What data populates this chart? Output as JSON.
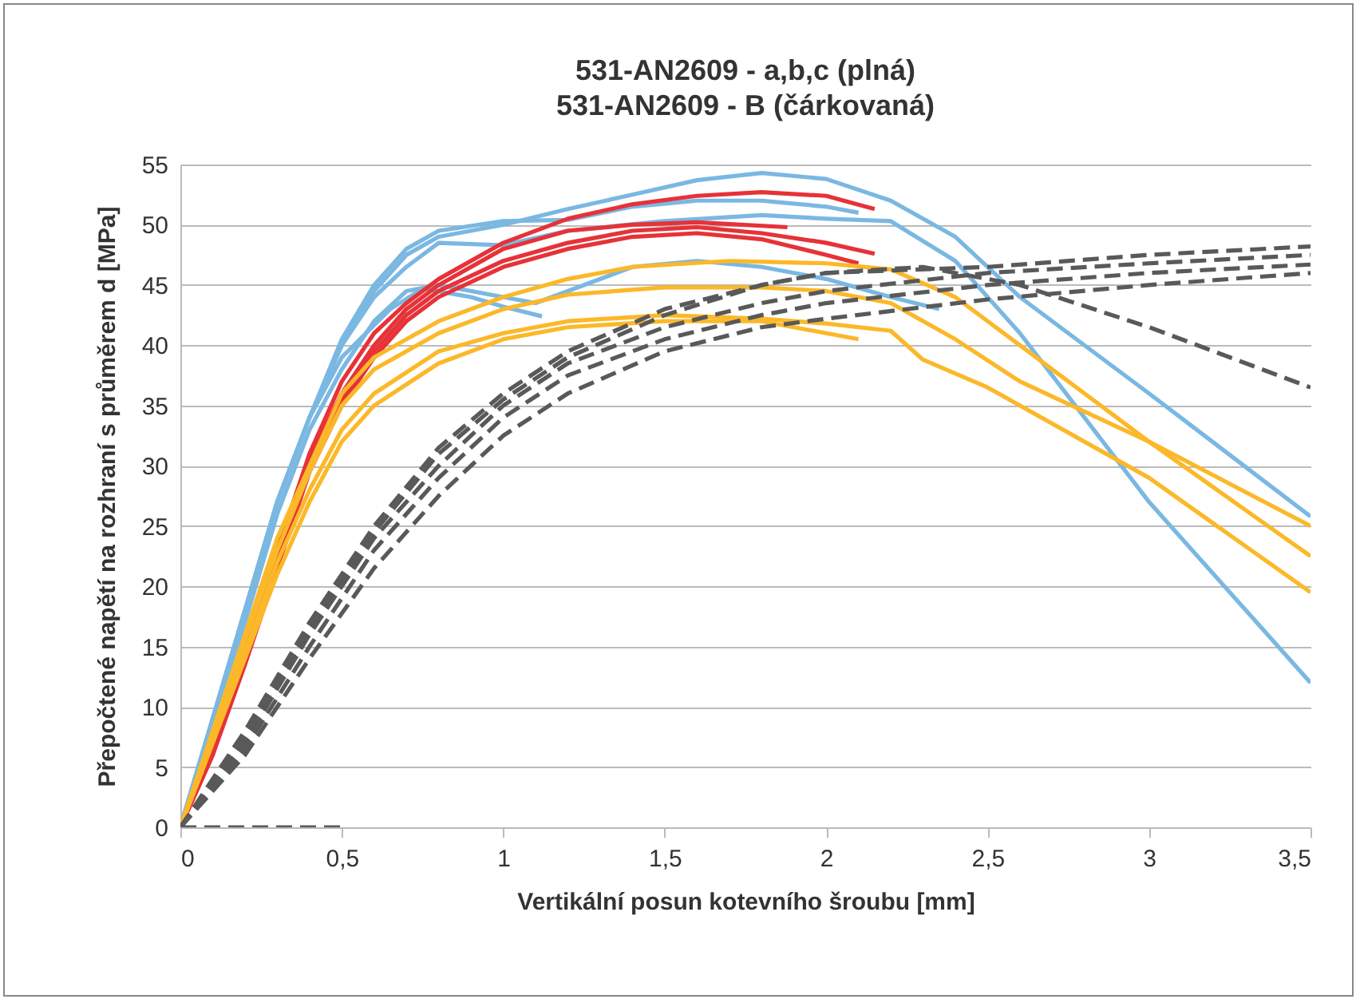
{
  "chart_data": {
    "type": "line",
    "title": "531-AN2609 - a,b,c (plná)",
    "subtitle": "531-AN2609 - B (čárkovaná)",
    "xlabel": "Vertikální posun kotevního šroubu [mm]",
    "ylabel": "Přepočtené napětí na rozhraní s průměrem d [MPa]",
    "xlim": [
      0,
      3.5
    ],
    "xticks": [
      0,
      {
        "value": 0.5,
        "label": "0,5"
      },
      1,
      {
        "value": 1.5,
        "label": "1,5"
      },
      2,
      {
        "value": 2.5,
        "label": "2,5"
      },
      3,
      {
        "value": 3.5,
        "label": "3,5"
      }
    ],
    "ylim": [
      0,
      55
    ],
    "yticks": [
      0,
      5,
      10,
      15,
      20,
      25,
      30,
      35,
      40,
      45,
      50,
      55
    ],
    "grid": "y",
    "legend": false,
    "marker": "none",
    "series": [
      {
        "color": "#7ab8e2",
        "line_style": "solid",
        "x": [
          0,
          0.1,
          0.2,
          0.3,
          0.4,
          0.5,
          0.6,
          0.7,
          0.8,
          1,
          1.2,
          1.4,
          1.6,
          1.8,
          2,
          2.2,
          2.4,
          2.6,
          3,
          3.5
        ],
        "values": [
          0,
          9,
          18,
          27,
          34,
          40,
          44.5,
          47.5,
          49,
          50,
          51.3,
          52.5,
          53.7,
          54.3,
          53.8,
          52,
          49,
          44,
          36,
          25.8
        ]
      },
      {
        "color": "#7ab8e2",
        "line_style": "solid",
        "x": [
          0,
          0.1,
          0.2,
          0.3,
          0.4,
          0.5,
          0.6,
          0.7,
          0.8,
          1,
          1.2,
          1.5,
          1.8,
          2,
          2.2,
          2.4,
          2.6,
          3,
          3.5
        ],
        "values": [
          0,
          9,
          18,
          27,
          34,
          40,
          44,
          46.5,
          48.5,
          48.3,
          49.5,
          50.3,
          50.8,
          50.5,
          50.3,
          47,
          41,
          27,
          12
        ]
      },
      {
        "color": "#7ab8e2",
        "line_style": "solid",
        "x": [
          0,
          0.1,
          0.2,
          0.3,
          0.4,
          0.5,
          0.6,
          0.7,
          0.8,
          1,
          1.2,
          1.4,
          1.6,
          1.8,
          2,
          2.1
        ],
        "values": [
          0,
          9,
          18,
          27,
          34,
          40.5,
          45,
          48,
          49.5,
          50.3,
          50.4,
          51.5,
          52,
          52,
          51.5,
          51
        ]
      },
      {
        "color": "#7ab8e2",
        "line_style": "solid",
        "x": [
          0,
          0.1,
          0.2,
          0.3,
          0.4,
          0.5,
          0.6,
          0.7,
          0.8,
          1,
          1.1,
          1.2,
          1.4,
          1.6,
          1.8,
          2,
          2.2,
          2.35
        ],
        "values": [
          0,
          8.5,
          17,
          26,
          33,
          38,
          42,
          44.5,
          45,
          44,
          43.5,
          44.5,
          46.5,
          47,
          46.5,
          45.5,
          44,
          43
        ]
      },
      {
        "color": "#7ab8e2",
        "line_style": "solid",
        "x": [
          0,
          0.1,
          0.2,
          0.3,
          0.4,
          0.5,
          0.65,
          0.75,
          0.9,
          1,
          1.12
        ],
        "values": [
          0,
          9,
          18,
          27,
          34,
          39,
          43,
          44.7,
          44,
          43.2,
          42.4
        ]
      },
      {
        "color": "#e63238",
        "line_style": "solid",
        "x": [
          0,
          0.1,
          0.2,
          0.3,
          0.4,
          0.5,
          0.6,
          0.7,
          0.8,
          1,
          1.2,
          1.4,
          1.6,
          1.8,
          2,
          2.15
        ],
        "values": [
          0,
          7,
          15,
          23,
          31,
          37,
          41,
          43.5,
          45.5,
          48.5,
          50.5,
          51.7,
          52.4,
          52.7,
          52.4,
          51.3
        ]
      },
      {
        "color": "#e63238",
        "line_style": "solid",
        "x": [
          0,
          0.1,
          0.2,
          0.3,
          0.4,
          0.5,
          0.6,
          0.7,
          0.8,
          1,
          1.2,
          1.4,
          1.6,
          1.8,
          2,
          2.15
        ],
        "values": [
          0,
          6,
          14,
          22,
          30,
          35.5,
          39.5,
          42.5,
          44.5,
          47,
          48.5,
          49.5,
          49.8,
          49.3,
          48.5,
          47.6
        ]
      },
      {
        "color": "#e63238",
        "line_style": "solid",
        "x": [
          0,
          0.1,
          0.2,
          0.3,
          0.4,
          0.5,
          0.6,
          0.7,
          0.8,
          1,
          1.2,
          1.4,
          1.6,
          1.88
        ],
        "values": [
          0,
          6.5,
          14.5,
          22.5,
          30.5,
          36,
          40,
          43,
          45,
          48,
          49.5,
          50,
          50.2,
          49.8
        ]
      },
      {
        "color": "#e63238",
        "line_style": "solid",
        "x": [
          0,
          0.1,
          0.2,
          0.3,
          0.4,
          0.5,
          0.6,
          0.7,
          0.8,
          1,
          1.2,
          1.4,
          1.6,
          1.8,
          2,
          2.1
        ],
        "values": [
          0,
          6,
          13.5,
          21.5,
          29.5,
          35,
          39,
          42,
          44,
          46.5,
          48,
          49,
          49.3,
          48.8,
          47.5,
          46.8
        ]
      },
      {
        "color": "#fbb829",
        "line_style": "solid",
        "x": [
          0,
          0.1,
          0.2,
          0.3,
          0.4,
          0.5,
          0.6,
          0.8,
          1,
          1.2,
          1.4,
          1.7,
          2,
          2.2,
          2.4,
          2.6,
          3,
          3.5
        ],
        "values": [
          0,
          8,
          16,
          24,
          30,
          36,
          39,
          42,
          44,
          45.5,
          46.5,
          47,
          46.8,
          46.3,
          44,
          40,
          32,
          22.5
        ]
      },
      {
        "color": "#fbb829",
        "line_style": "solid",
        "x": [
          0,
          0.1,
          0.2,
          0.3,
          0.4,
          0.5,
          0.6,
          0.8,
          1,
          1.2,
          1.5,
          1.8,
          2,
          2.2,
          2.4,
          2.6,
          3,
          3.5
        ],
        "values": [
          0,
          7.5,
          15.5,
          23,
          29.5,
          35,
          38,
          41,
          43,
          44.2,
          44.8,
          44.8,
          44.5,
          43.5,
          40.5,
          37,
          32,
          25
        ]
      },
      {
        "color": "#fbb829",
        "line_style": "solid",
        "x": [
          0,
          0.1,
          0.2,
          0.3,
          0.4,
          0.5,
          0.6,
          0.8,
          1,
          1.2,
          1.5,
          1.8,
          2,
          2.2,
          2.3,
          2.5,
          3,
          3.5
        ],
        "values": [
          0,
          7,
          14.5,
          22,
          28,
          33,
          36,
          39.5,
          41,
          42,
          42.5,
          42.2,
          41.8,
          41.2,
          38.8,
          36.5,
          29,
          19.5
        ]
      },
      {
        "color": "#fbb829",
        "line_style": "solid",
        "x": [
          0,
          0.1,
          0.2,
          0.3,
          0.4,
          0.5,
          0.6,
          0.8,
          1,
          1.2,
          1.5,
          1.8,
          2,
          2.1
        ],
        "values": [
          0,
          7,
          14,
          21,
          27,
          32,
          35,
          38.5,
          40.5,
          41.5,
          42,
          42,
          41,
          40.5
        ]
      },
      {
        "color": "#595959",
        "line_style": "dashed",
        "x": [
          0,
          0.2,
          0.4,
          0.6,
          0.8,
          1,
          1.2,
          1.5,
          1.8,
          2,
          2.5,
          3,
          3.5
        ],
        "values": [
          0,
          8,
          17,
          25,
          31.5,
          36,
          39.5,
          43,
          45,
          46,
          46.5,
          47.5,
          48.2
        ]
      },
      {
        "color": "#595959",
        "line_style": "dashed",
        "x": [
          0,
          0.2,
          0.4,
          0.6,
          0.8,
          1,
          1.2,
          1.5,
          1.8,
          2,
          2.5,
          3,
          3.5
        ],
        "values": [
          0,
          7,
          16,
          24,
          30,
          35,
          38.5,
          41.5,
          43.5,
          44.5,
          46,
          46.8,
          47.5
        ]
      },
      {
        "color": "#595959",
        "line_style": "dashed",
        "x": [
          0,
          0.2,
          0.4,
          0.6,
          0.8,
          1,
          1.2,
          1.5,
          1.8,
          2,
          2.3,
          2.6,
          3,
          3.5
        ],
        "values": [
          0,
          7.5,
          16.5,
          24.5,
          31,
          35.5,
          39,
          42.5,
          45,
          46,
          46.5,
          45,
          41.5,
          36.5
        ]
      },
      {
        "color": "#595959",
        "line_style": "dashed",
        "x": [
          0,
          0.2,
          0.4,
          0.6,
          0.8,
          1,
          1.2,
          1.5,
          1.8,
          2,
          2.5,
          3,
          3.5
        ],
        "values": [
          0,
          6,
          14,
          21.5,
          27.5,
          32.5,
          36,
          39.5,
          41.5,
          42.2,
          43.8,
          45,
          46
        ]
      },
      {
        "color": "#595959",
        "line_style": "dashed",
        "x": [
          0,
          0.2,
          0.4,
          0.6,
          0.8,
          1,
          1.2,
          1.5,
          1.8,
          2,
          2.5,
          3,
          3.5
        ],
        "values": [
          0,
          6.5,
          15,
          23,
          29,
          34,
          37.5,
          40.5,
          42.5,
          43.5,
          45,
          46,
          46.7
        ]
      },
      {
        "color": "#595959",
        "line_style": "dashed",
        "x": [
          0,
          0.5
        ],
        "values": [
          0,
          0
        ]
      }
    ]
  }
}
